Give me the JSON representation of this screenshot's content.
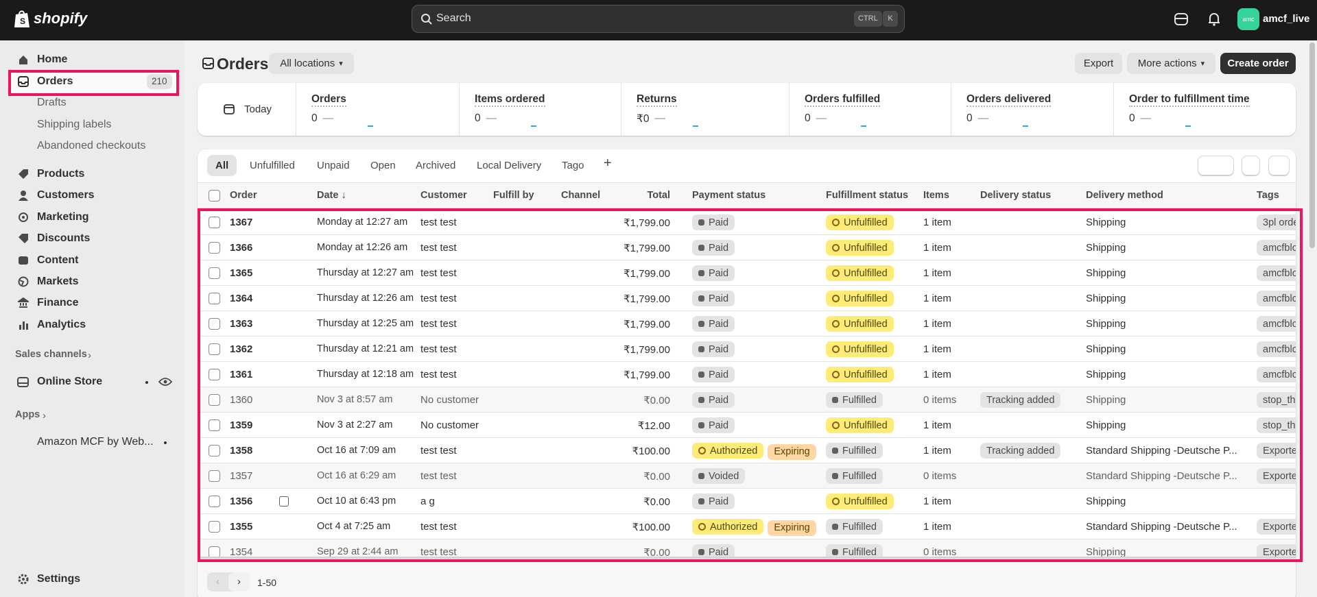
{
  "topbar": {
    "logo": "shopify",
    "search": "Search",
    "shortcut": [
      "CTRL",
      "K"
    ],
    "avatar": "amc",
    "store": "amcf_live"
  },
  "sidebar": {
    "nav": [
      {
        "label": "Home"
      },
      {
        "label": "Orders",
        "badge": 210,
        "selected": true
      },
      {
        "label": "Drafts",
        "sub": true
      },
      {
        "label": "Shipping labels",
        "sub": true
      },
      {
        "label": "Abandoned checkouts",
        "sub": true
      },
      {
        "label": "Products"
      },
      {
        "label": "Customers"
      },
      {
        "label": "Marketing"
      },
      {
        "label": "Discounts"
      },
      {
        "label": "Content"
      },
      {
        "label": "Markets"
      },
      {
        "label": "Finance"
      },
      {
        "label": "Analytics"
      }
    ],
    "sales_channels": "Sales channels",
    "online_store": "Online Store",
    "apps": "Apps",
    "app": "Amazon MCF by Web...",
    "settings": "Settings"
  },
  "header": {
    "title": "Orders",
    "location": "All locations",
    "buttons": [
      "Export",
      "More actions",
      "Create order"
    ]
  },
  "metrics": {
    "date": "Today",
    "items": [
      {
        "label": "Orders",
        "value": 0,
        "trend": "—"
      },
      {
        "label": "Items ordered",
        "value": 0,
        "trend": "—"
      },
      {
        "label": "Returns",
        "value": "₹0",
        "trend": "—"
      },
      {
        "label": "Orders fulfilled",
        "value": 0,
        "trend": "—"
      },
      {
        "label": "Orders delivered",
        "value": 0,
        "trend": "—"
      },
      {
        "label": "Order to fulfillment time",
        "value": 0,
        "trend": "—"
      }
    ]
  },
  "table": {
    "tabs": [
      "All",
      "Unfulfilled",
      "Unpaid",
      "Open",
      "Archived",
      "Local Delivery",
      "Tago"
    ],
    "add_tab": "+",
    "columns": [
      "Order",
      "Date",
      "Customer",
      "Fulfill by",
      "Channel",
      "Total",
      "Payment status",
      "Fulfillment status",
      "Items",
      "Delivery status",
      "Delivery method",
      "Tags"
    ],
    "sort_indicator": "↓",
    "rows": [
      {
        "order": "1367",
        "date": "Monday at 12:27 am",
        "customer": "test test",
        "total": "₹1,799.00",
        "payment": [
          {
            "label": "Paid",
            "tone": "neutral"
          }
        ],
        "fulfillment": {
          "label": "Unfulfilled",
          "tone": "attention"
        },
        "items": "1 item",
        "delivery_method": "Shipping",
        "tags": "3pl orde"
      },
      {
        "order": "1366",
        "date": "Monday at 12:26 am",
        "customer": "test test",
        "total": "₹1,799.00",
        "payment": [
          {
            "label": "Paid",
            "tone": "neutral"
          }
        ],
        "fulfillment": {
          "label": "Unfulfilled",
          "tone": "attention"
        },
        "items": "1 item",
        "delivery_method": "Shipping",
        "tags": "amcfblc"
      },
      {
        "order": "1365",
        "date": "Thursday at 12:27 am",
        "customer": "test test",
        "total": "₹1,799.00",
        "payment": [
          {
            "label": "Paid",
            "tone": "neutral"
          }
        ],
        "fulfillment": {
          "label": "Unfulfilled",
          "tone": "attention"
        },
        "items": "1 item",
        "delivery_method": "Shipping",
        "tags": "amcfblc"
      },
      {
        "order": "1364",
        "date": "Thursday at 12:26 am",
        "customer": "test test",
        "total": "₹1,799.00",
        "payment": [
          {
            "label": "Paid",
            "tone": "neutral"
          }
        ],
        "fulfillment": {
          "label": "Unfulfilled",
          "tone": "attention"
        },
        "items": "1 item",
        "delivery_method": "Shipping",
        "tags": "amcfblc"
      },
      {
        "order": "1363",
        "date": "Thursday at 12:25 am",
        "customer": "test test",
        "total": "₹1,799.00",
        "payment": [
          {
            "label": "Paid",
            "tone": "neutral"
          }
        ],
        "fulfillment": {
          "label": "Unfulfilled",
          "tone": "attention"
        },
        "items": "1 item",
        "delivery_method": "Shipping",
        "tags": "amcfblc"
      },
      {
        "order": "1362",
        "date": "Thursday at 12:21 am",
        "customer": "test test",
        "total": "₹1,799.00",
        "payment": [
          {
            "label": "Paid",
            "tone": "neutral"
          }
        ],
        "fulfillment": {
          "label": "Unfulfilled",
          "tone": "attention"
        },
        "items": "1 item",
        "delivery_method": "Shipping",
        "tags": "amcfblc"
      },
      {
        "order": "1361",
        "date": "Thursday at 12:18 am",
        "customer": "test test",
        "total": "₹1,799.00",
        "payment": [
          {
            "label": "Paid",
            "tone": "neutral"
          }
        ],
        "fulfillment": {
          "label": "Unfulfilled",
          "tone": "attention"
        },
        "items": "1 item",
        "delivery_method": "Shipping",
        "tags": "amcfblc"
      },
      {
        "order": "1360",
        "date": "Nov 3 at 8:57 am",
        "customer": "No customer",
        "total": "₹0.00",
        "payment": [
          {
            "label": "Paid",
            "tone": "neutral"
          }
        ],
        "fulfillment": {
          "label": "Fulfilled",
          "tone": "neutral"
        },
        "items": "0 items",
        "delivery_status": "Tracking added",
        "delivery_method": "Shipping",
        "tags": "stop_thi",
        "archived": true
      },
      {
        "order": "1359",
        "date": "Nov 3 at 2:27 am",
        "customer": "No customer",
        "total": "₹12.00",
        "payment": [
          {
            "label": "Paid",
            "tone": "neutral"
          }
        ],
        "fulfillment": {
          "label": "Unfulfilled",
          "tone": "attention"
        },
        "items": "1 item",
        "delivery_method": "Shipping",
        "tags": "stop_thi"
      },
      {
        "order": "1358",
        "date": "Oct 16 at 7:09 am",
        "customer": "test test",
        "total": "₹100.00",
        "payment": [
          {
            "label": "Authorized",
            "tone": "attention"
          },
          {
            "label": "Expiring",
            "tone": "warning"
          }
        ],
        "fulfillment": {
          "label": "Fulfilled",
          "tone": "neutral"
        },
        "items": "1 item",
        "delivery_status": "Tracking added",
        "delivery_method": "Standard Shipping -Deutsche P...",
        "tags": "Exporte"
      },
      {
        "order": "1357",
        "date": "Oct 16 at 6:29 am",
        "customer": "test test",
        "total": "₹0.00",
        "payment": [
          {
            "label": "Voided",
            "tone": "neutral"
          }
        ],
        "fulfillment": {
          "label": "Fulfilled",
          "tone": "neutral"
        },
        "items": "0 items",
        "delivery_method": "Standard Shipping -Deutsche P...",
        "tags": "Exporte",
        "archived": true,
        "voided": true
      },
      {
        "order": "1356",
        "date": "Oct 10 at 6:43 pm",
        "customer": "a g",
        "total": "₹0.00",
        "payment": [
          {
            "label": "Paid",
            "tone": "neutral"
          }
        ],
        "fulfillment": {
          "label": "Unfulfilled",
          "tone": "attention"
        },
        "items": "1 item",
        "delivery_method": "Shipping",
        "note": true
      },
      {
        "order": "1355",
        "date": "Oct 4 at 7:25 am",
        "customer": "test test",
        "total": "₹100.00",
        "payment": [
          {
            "label": "Authorized",
            "tone": "attention"
          },
          {
            "label": "Expiring",
            "tone": "warning"
          }
        ],
        "fulfillment": {
          "label": "Fulfilled",
          "tone": "neutral"
        },
        "items": "1 item",
        "delivery_method": "Standard Shipping -Deutsche P...",
        "tags": "Exporte"
      },
      {
        "order": "1354",
        "date": "Sep 29 at 2:44 am",
        "customer": "test test",
        "total": "₹0.00",
        "payment": [
          {
            "label": "Paid",
            "tone": "neutral"
          }
        ],
        "fulfillment": {
          "label": "Fulfilled",
          "tone": "neutral"
        },
        "items": "0 items",
        "delivery_method": "Shipping",
        "tags": "Exporte",
        "archived": true
      }
    ],
    "pagination": "1-50"
  }
}
